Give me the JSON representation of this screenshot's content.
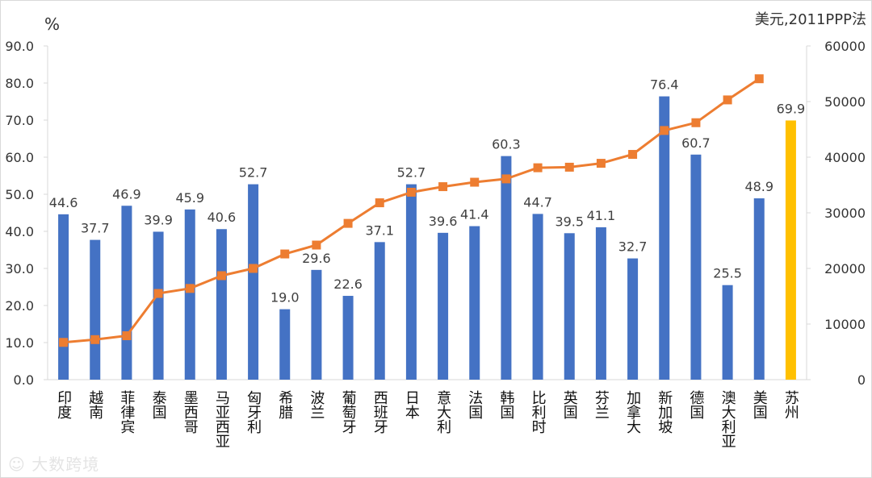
{
  "chart_data": {
    "type": "bar",
    "title": "",
    "left_axis_label": "%",
    "right_axis_label": "美元,2011PPP法",
    "ylim": [
      0,
      90
    ],
    "y2lim": [
      0,
      60000
    ],
    "left_ticks": [
      "0.0",
      "10.0",
      "20.0",
      "30.0",
      "40.0",
      "50.0",
      "60.0",
      "70.0",
      "80.0",
      "90.0"
    ],
    "right_ticks": [
      "0",
      "10000",
      "20000",
      "30000",
      "40000",
      "50000",
      "60000"
    ],
    "categories": [
      "印度",
      "越南",
      "菲律宾",
      "泰国",
      "墨西哥",
      "马亚西亚",
      "匈牙利",
      "希腊",
      "波兰",
      "葡萄牙",
      "西班牙",
      "日本",
      "意大利",
      "法国",
      "韩国",
      "比利时",
      "英国",
      "芬兰",
      "加拿大",
      "新加坡",
      "德国",
      "澳大利亚",
      "美国",
      "苏州"
    ],
    "series": [
      {
        "name": "percent",
        "type": "bar",
        "axis": "left",
        "values": [
          44.6,
          37.7,
          46.9,
          39.9,
          45.9,
          40.6,
          52.7,
          19.0,
          29.6,
          22.6,
          37.1,
          52.7,
          39.6,
          41.4,
          60.3,
          44.7,
          39.5,
          41.1,
          32.7,
          76.4,
          60.7,
          25.5,
          48.9,
          69.9
        ],
        "labels": [
          "44.6",
          "37.7",
          "46.9",
          "39.9",
          "45.9",
          "40.6",
          "52.7",
          "19.0",
          "29.6",
          "22.6",
          "37.1",
          "52.7",
          "39.6",
          "41.4",
          "60.3",
          "44.7",
          "39.5",
          "41.1",
          "32.7",
          "76.4",
          "60.7",
          "25.5",
          "48.9",
          "69.9"
        ]
      },
      {
        "name": "gdp_per_capita_ppp",
        "type": "line",
        "axis": "right",
        "values": [
          6700,
          7200,
          7900,
          15500,
          16400,
          18700,
          20000,
          22600,
          24200,
          28100,
          31800,
          33700,
          34700,
          35500,
          36100,
          38100,
          38200,
          38900,
          40500,
          44800,
          46200,
          50300,
          54100,
          null
        ]
      }
    ],
    "colors": {
      "bar": "#4472c4",
      "highlight_bar": "#ffc000",
      "line": "#ed7d31",
      "axis": "#d9d9d9"
    },
    "highlight_category": "苏州"
  },
  "watermark": "大数跨境"
}
